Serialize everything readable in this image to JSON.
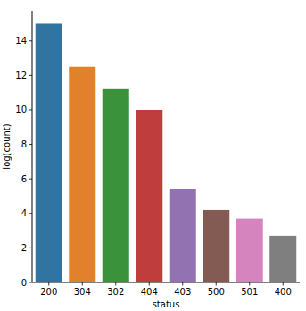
{
  "chart_data": {
    "type": "bar",
    "x_label": "status",
    "y_label": "log(count)",
    "categories": [
      "200",
      "304",
      "302",
      "404",
      "403",
      "500",
      "501",
      "400"
    ],
    "values": [
      15.0,
      12.5,
      11.2,
      10.0,
      5.4,
      4.2,
      3.7,
      2.7
    ],
    "colors": [
      "#3274a1",
      "#e1812c",
      "#3a923a",
      "#c03d3e",
      "#9372b2",
      "#845b53",
      "#d684bd",
      "#7f7f7f"
    ],
    "ylim": [
      0,
      15.75
    ],
    "yticks": [
      0,
      2,
      4,
      6,
      8,
      10,
      12,
      14
    ],
    "grid": false
  }
}
